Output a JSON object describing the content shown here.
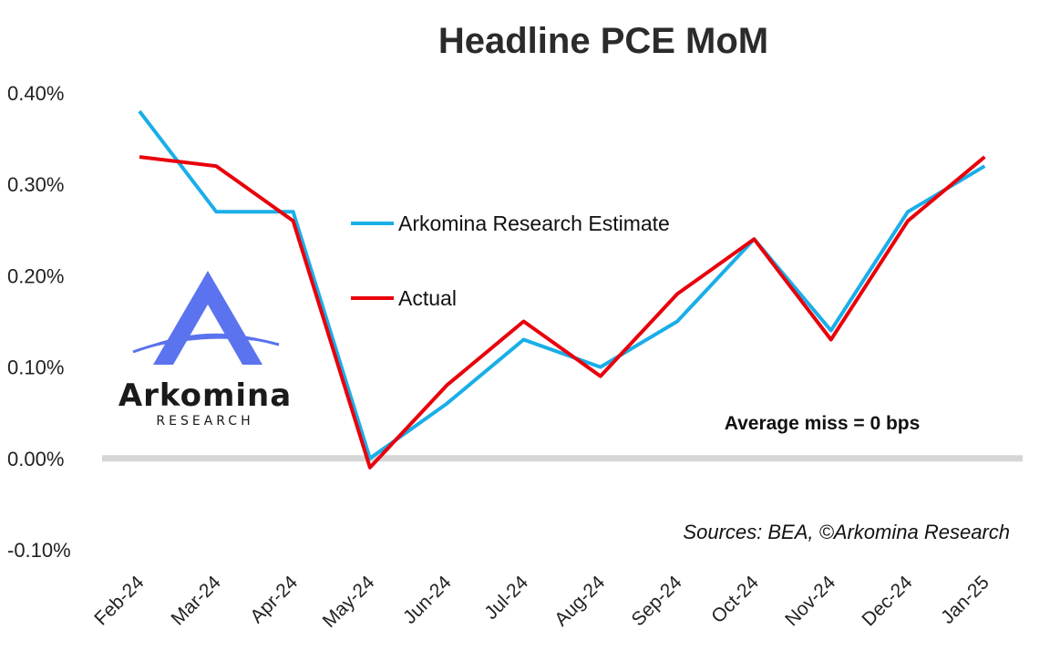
{
  "chart_data": {
    "type": "line",
    "title": "Headline PCE MoM",
    "categories": [
      "Feb-24",
      "Mar-24",
      "Apr-24",
      "May-24",
      "Jun-24",
      "Jul-24",
      "Aug-24",
      "Sep-24",
      "Oct-24",
      "Nov-24",
      "Dec-24",
      "Jan-25"
    ],
    "ylim": [
      -0.1,
      0.4
    ],
    "yticks": [
      0.4,
      0.3,
      0.2,
      0.1,
      0.0,
      -0.1
    ],
    "ytick_labels": [
      "0.40%",
      "0.30%",
      "0.20%",
      "0.10%",
      "0.00%",
      "-0.10%"
    ],
    "xlabel": "",
    "ylabel": "",
    "grid": false,
    "legend_position": "center-left inside plot",
    "series": [
      {
        "name": "Arkomina Research Estimate",
        "color": "#1aaee8",
        "values": [
          0.38,
          0.27,
          0.27,
          0.0,
          0.06,
          0.13,
          0.1,
          0.15,
          0.24,
          0.14,
          0.27,
          0.32
        ]
      },
      {
        "name": "Actual",
        "color": "#e8000b",
        "values": [
          0.33,
          0.32,
          0.26,
          -0.01,
          0.08,
          0.15,
          0.09,
          0.18,
          0.24,
          0.13,
          0.26,
          0.33
        ]
      }
    ],
    "zero_line_color": "#d6d6d6",
    "annotations": {
      "average_miss": "Average miss = 0 bps",
      "source": "Sources: BEA, ©Arkomina Research"
    }
  },
  "logo": {
    "name": "Arkomina",
    "subtitle": "RESEARCH",
    "color": "#5b73ee"
  }
}
